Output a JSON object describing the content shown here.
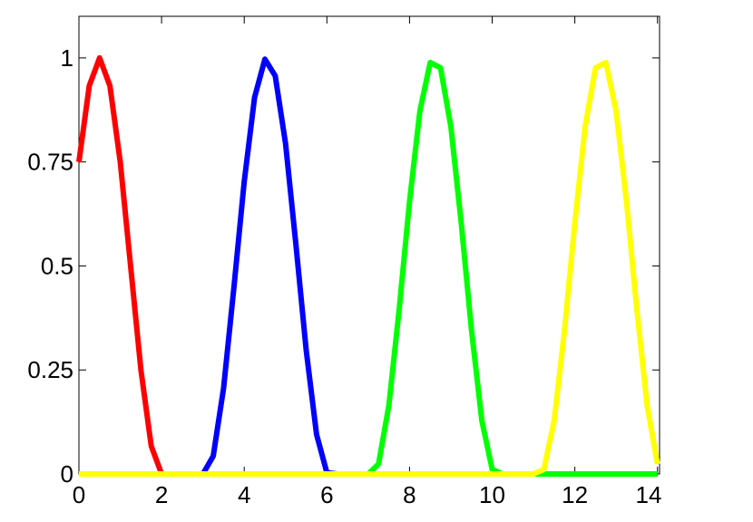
{
  "chart_data": {
    "type": "line",
    "x": [
      0,
      0.25,
      0.5,
      0.75,
      1,
      1.25,
      1.5,
      1.75,
      2,
      2.25,
      2.5,
      2.75,
      3,
      3.25,
      3.5,
      3.75,
      4,
      4.25,
      4.5,
      4.75,
      5,
      5.25,
      5.5,
      5.75,
      6,
      6.25,
      6.5,
      6.75,
      7,
      7.25,
      7.5,
      7.75,
      8,
      8.25,
      8.5,
      8.75,
      9,
      9.25,
      9.5,
      9.75,
      10,
      10.25,
      10.5,
      10.75,
      11,
      11.25,
      11.5,
      11.75,
      12,
      12.25,
      12.5,
      12.75,
      13,
      13.25,
      13.5,
      13.75,
      14
    ],
    "series": [
      {
        "color": "#ff0000",
        "values": [
          0.75,
          0.933,
          1,
          0.933,
          0.75,
          0.5,
          0.25,
          0.067,
          0,
          0,
          0,
          0,
          0,
          0,
          0,
          0,
          0,
          0,
          0,
          0,
          0,
          0,
          0,
          0,
          0,
          0,
          0,
          0,
          0,
          0,
          0,
          0,
          0,
          0,
          0,
          0,
          0,
          0,
          0,
          0,
          0,
          0,
          0,
          0,
          0,
          0,
          0,
          0,
          0,
          0,
          0,
          0,
          0,
          0,
          0,
          0,
          0
        ]
      },
      {
        "color": "#0000ff",
        "values": [
          0,
          0,
          0,
          0,
          0,
          0,
          0,
          0,
          0,
          0,
          0,
          0,
          0,
          0.043,
          0.206,
          0.448,
          0.703,
          0.905,
          0.997,
          0.957,
          0.794,
          0.552,
          0.297,
          0.095,
          0.003,
          0,
          0,
          0,
          0,
          0,
          0,
          0,
          0,
          0,
          0,
          0,
          0,
          0,
          0,
          0,
          0,
          0,
          0,
          0,
          0,
          0,
          0,
          0,
          0,
          0,
          0,
          0,
          0,
          0,
          0,
          0,
          0
        ]
      },
      {
        "color": "#00ff00",
        "values": [
          0,
          0,
          0,
          0,
          0,
          0,
          0,
          0,
          0,
          0,
          0,
          0,
          0,
          0,
          0,
          0,
          0,
          0,
          0,
          0,
          0,
          0,
          0,
          0,
          0,
          0,
          0,
          0,
          0,
          0.024,
          0.165,
          0.396,
          0.655,
          0.872,
          0.989,
          0.976,
          0.835,
          0.604,
          0.345,
          0.128,
          0.011,
          0,
          0,
          0,
          0,
          0,
          0,
          0,
          0,
          0,
          0,
          0,
          0,
          0,
          0,
          0,
          0
        ]
      },
      {
        "color": "#ffff00",
        "values": [
          0,
          0,
          0,
          0,
          0,
          0,
          0,
          0,
          0,
          0,
          0,
          0,
          0,
          0,
          0,
          0,
          0,
          0,
          0,
          0,
          0,
          0,
          0,
          0,
          0,
          0,
          0,
          0,
          0,
          0,
          0,
          0,
          0,
          0,
          0,
          0,
          0,
          0,
          0,
          0,
          0,
          0,
          0,
          0,
          0,
          0.011,
          0.128,
          0.345,
          0.604,
          0.835,
          0.976,
          0.989,
          0.872,
          0.655,
          0.396,
          0.165,
          0.024
        ]
      }
    ],
    "xlim": [
      0,
      14.05
    ],
    "ylim": [
      0,
      1.1
    ],
    "xticks": [
      0,
      2,
      4,
      6,
      8,
      10,
      12,
      14
    ],
    "yticks": [
      0,
      0.25,
      0.5,
      0.75,
      1
    ]
  }
}
